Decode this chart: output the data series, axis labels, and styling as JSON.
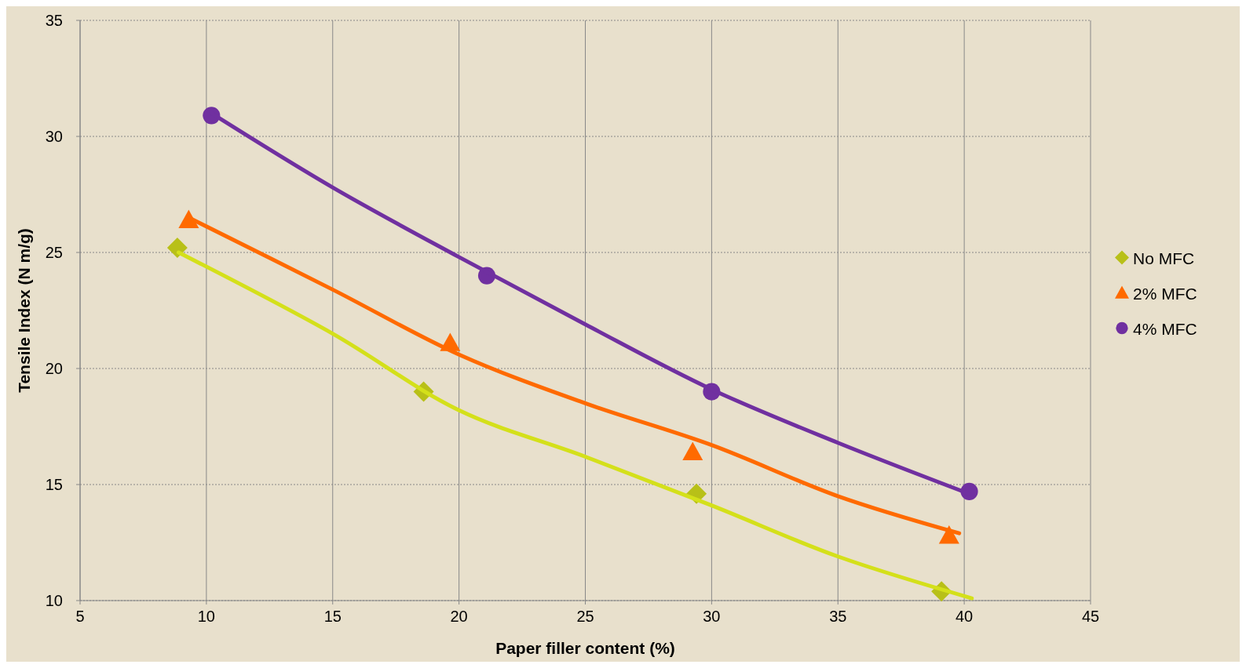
{
  "chart_data": {
    "type": "scatter",
    "xlabel": "Paper filler content  (%)",
    "ylabel": "Tensile Index (N m/g)",
    "xlim": [
      5,
      45
    ],
    "ylim": [
      10,
      35
    ],
    "xticks": [
      5,
      10,
      15,
      20,
      25,
      30,
      35,
      40,
      45
    ],
    "yticks": [
      10,
      15,
      20,
      25,
      30,
      35
    ],
    "grid": true,
    "legend": "right",
    "series": [
      {
        "name": "No MFC",
        "color": "#b8c018",
        "marker": "diamond",
        "x": [
          8.85,
          18.6,
          29.4,
          39.1
        ],
        "values": [
          25.2,
          19.0,
          14.6,
          10.4
        ]
      },
      {
        "name": "2% MFC",
        "color": "#ff6a00",
        "marker": "triangle",
        "x": [
          9.3,
          19.65,
          29.25,
          39.4
        ],
        "values": [
          26.4,
          21.1,
          16.4,
          12.8
        ]
      },
      {
        "name": "4% MFC",
        "color": "#7030a0",
        "marker": "circle",
        "x": [
          10.2,
          21.1,
          30.0,
          40.2
        ],
        "values": [
          30.9,
          24.0,
          19.0,
          14.7
        ]
      },
      {
        "type": "line",
        "color": "#d4e01a",
        "marker": "none",
        "x": [
          8.9,
          15,
          20,
          25,
          30,
          35,
          40.3
        ],
        "values": [
          25.0,
          21.5,
          18.2,
          16.2,
          14.1,
          11.9,
          10.1
        ]
      },
      {
        "type": "line",
        "color": "#ff6a00",
        "marker": "none",
        "x": [
          9.3,
          15,
          20,
          25,
          30,
          35,
          39.8
        ],
        "values": [
          26.5,
          23.4,
          20.6,
          18.5,
          16.7,
          14.5,
          12.9
        ]
      },
      {
        "type": "line",
        "color": "#7030a0",
        "marker": "none",
        "x": [
          10.2,
          15,
          20,
          25,
          30,
          35,
          40.2
        ],
        "values": [
          31.0,
          27.8,
          24.8,
          21.9,
          19.1,
          16.8,
          14.6
        ]
      }
    ]
  }
}
